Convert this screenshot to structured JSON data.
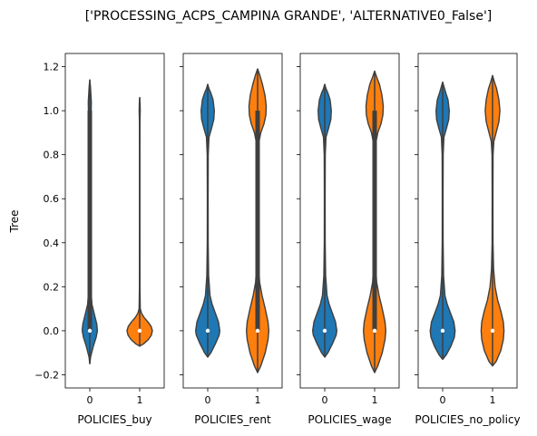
{
  "chart_data": {
    "type": "violin",
    "title": "['PROCESSING_ACPS_CAMPINA GRANDE', 'ALTERNATIVE0_False']",
    "ylabel": "Tree",
    "ylim": [
      -0.26,
      1.26
    ],
    "yticks": [
      -0.2,
      0.0,
      0.2,
      0.4,
      0.6,
      0.8,
      1.0,
      1.2
    ],
    "ytick_labels": [
      "−0.2",
      "0.0",
      "0.2",
      "0.4",
      "0.6",
      "0.8",
      "1.0",
      "1.2"
    ],
    "category_labels": [
      "0",
      "1"
    ],
    "series_colors": {
      "0": "#1f77b4",
      "1": "#ff7f0e"
    },
    "panels": [
      {
        "xlabel": "POLICIES_buy",
        "violins": [
          {
            "category": "0",
            "min_extent": -0.15,
            "max_extent": 1.14,
            "median": 0.0,
            "q1": 0.0,
            "q3": 1.0,
            "profile": [
              [
                -0.15,
                0
              ],
              [
                -0.12,
                0.06
              ],
              [
                -0.07,
                0.28
              ],
              [
                -0.03,
                0.5
              ],
              [
                0.0,
                0.6
              ],
              [
                0.03,
                0.55
              ],
              [
                0.07,
                0.38
              ],
              [
                0.12,
                0.17
              ],
              [
                0.2,
                0.07
              ],
              [
                0.3,
                0.05
              ],
              [
                0.5,
                0.045
              ],
              [
                0.7,
                0.045
              ],
              [
                0.85,
                0.05
              ],
              [
                0.95,
                0.07
              ],
              [
                1.0,
                0.11
              ],
              [
                1.04,
                0.12
              ],
              [
                1.08,
                0.08
              ],
              [
                1.11,
                0.05
              ],
              [
                1.14,
                0
              ]
            ]
          },
          {
            "category": "1",
            "min_extent": -0.07,
            "max_extent": 1.06,
            "median": 0.0,
            "q1": 0.0,
            "q3": 0.0,
            "profile": [
              [
                -0.07,
                0
              ],
              [
                -0.06,
                0.3
              ],
              [
                -0.04,
                0.68
              ],
              [
                -0.02,
                0.92
              ],
              [
                0.0,
                1.0
              ],
              [
                0.02,
                0.9
              ],
              [
                0.04,
                0.65
              ],
              [
                0.06,
                0.35
              ],
              [
                0.08,
                0.14
              ],
              [
                0.1,
                0.045
              ],
              [
                0.2,
                0.02
              ],
              [
                0.5,
                0.015
              ],
              [
                0.8,
                0.015
              ],
              [
                0.95,
                0.02
              ],
              [
                1.0,
                0.04
              ],
              [
                1.03,
                0.03
              ],
              [
                1.06,
                0
              ]
            ]
          }
        ]
      },
      {
        "xlabel": "POLICIES_rent",
        "violins": [
          {
            "category": "0",
            "min_extent": -0.12,
            "max_extent": 1.12,
            "median": 0.0,
            "q1": 0.0,
            "q3": 0.0,
            "profile": [
              [
                -0.12,
                0
              ],
              [
                -0.1,
                0.25
              ],
              [
                -0.06,
                0.6
              ],
              [
                -0.02,
                0.9
              ],
              [
                0.0,
                0.95
              ],
              [
                0.04,
                0.85
              ],
              [
                0.08,
                0.6
              ],
              [
                0.12,
                0.35
              ],
              [
                0.16,
                0.18
              ],
              [
                0.25,
                0.07
              ],
              [
                0.4,
                0.035
              ],
              [
                0.6,
                0.03
              ],
              [
                0.8,
                0.04
              ],
              [
                0.88,
                0.1
              ],
              [
                0.92,
                0.3
              ],
              [
                0.96,
                0.48
              ],
              [
                1.0,
                0.52
              ],
              [
                1.05,
                0.42
              ],
              [
                1.08,
                0.25
              ],
              [
                1.1,
                0.1
              ],
              [
                1.12,
                0
              ]
            ]
          },
          {
            "category": "1",
            "min_extent": -0.19,
            "max_extent": 1.19,
            "median": 0.0,
            "q1": 0.0,
            "q3": 1.0,
            "profile": [
              [
                -0.19,
                0
              ],
              [
                -0.16,
                0.25
              ],
              [
                -0.1,
                0.6
              ],
              [
                -0.04,
                0.82
              ],
              [
                0.0,
                0.88
              ],
              [
                0.04,
                0.82
              ],
              [
                0.1,
                0.6
              ],
              [
                0.16,
                0.35
              ],
              [
                0.22,
                0.16
              ],
              [
                0.3,
                0.07
              ],
              [
                0.45,
                0.04
              ],
              [
                0.6,
                0.035
              ],
              [
                0.75,
                0.04
              ],
              [
                0.85,
                0.08
              ],
              [
                0.9,
                0.25
              ],
              [
                0.94,
                0.5
              ],
              [
                0.98,
                0.65
              ],
              [
                1.02,
                0.68
              ],
              [
                1.07,
                0.58
              ],
              [
                1.12,
                0.38
              ],
              [
                1.16,
                0.18
              ],
              [
                1.19,
                0
              ]
            ]
          }
        ]
      },
      {
        "xlabel": "POLICIES_wage",
        "violins": [
          {
            "category": "0",
            "min_extent": -0.12,
            "max_extent": 1.12,
            "median": 0.0,
            "q1": 0.0,
            "q3": 0.0,
            "profile": [
              [
                -0.12,
                0
              ],
              [
                -0.1,
                0.25
              ],
              [
                -0.06,
                0.6
              ],
              [
                -0.02,
                0.9
              ],
              [
                0.0,
                0.95
              ],
              [
                0.04,
                0.85
              ],
              [
                0.08,
                0.6
              ],
              [
                0.12,
                0.35
              ],
              [
                0.16,
                0.18
              ],
              [
                0.25,
                0.07
              ],
              [
                0.4,
                0.035
              ],
              [
                0.6,
                0.03
              ],
              [
                0.8,
                0.04
              ],
              [
                0.88,
                0.1
              ],
              [
                0.92,
                0.3
              ],
              [
                0.96,
                0.48
              ],
              [
                1.0,
                0.52
              ],
              [
                1.05,
                0.42
              ],
              [
                1.08,
                0.25
              ],
              [
                1.1,
                0.1
              ],
              [
                1.12,
                0
              ]
            ]
          },
          {
            "category": "1",
            "min_extent": -0.19,
            "max_extent": 1.18,
            "median": 0.0,
            "q1": 0.0,
            "q3": 1.0,
            "profile": [
              [
                -0.19,
                0
              ],
              [
                -0.16,
                0.25
              ],
              [
                -0.1,
                0.6
              ],
              [
                -0.04,
                0.82
              ],
              [
                0.0,
                0.88
              ],
              [
                0.04,
                0.82
              ],
              [
                0.1,
                0.6
              ],
              [
                0.16,
                0.35
              ],
              [
                0.22,
                0.16
              ],
              [
                0.3,
                0.07
              ],
              [
                0.45,
                0.04
              ],
              [
                0.6,
                0.035
              ],
              [
                0.75,
                0.04
              ],
              [
                0.85,
                0.08
              ],
              [
                0.9,
                0.25
              ],
              [
                0.94,
                0.5
              ],
              [
                0.98,
                0.65
              ],
              [
                1.02,
                0.68
              ],
              [
                1.07,
                0.58
              ],
              [
                1.12,
                0.38
              ],
              [
                1.15,
                0.18
              ],
              [
                1.18,
                0
              ]
            ]
          }
        ]
      },
      {
        "xlabel": "POLICIES_no_policy",
        "violins": [
          {
            "category": "0",
            "min_extent": -0.13,
            "max_extent": 1.13,
            "median": 0.0,
            "q1": 0.0,
            "q3": 0.0,
            "profile": [
              [
                -0.13,
                0
              ],
              [
                -0.11,
                0.28
              ],
              [
                -0.07,
                0.65
              ],
              [
                -0.03,
                0.92
              ],
              [
                0.0,
                0.98
              ],
              [
                0.04,
                0.88
              ],
              [
                0.08,
                0.62
              ],
              [
                0.12,
                0.36
              ],
              [
                0.16,
                0.18
              ],
              [
                0.25,
                0.07
              ],
              [
                0.4,
                0.035
              ],
              [
                0.6,
                0.03
              ],
              [
                0.8,
                0.04
              ],
              [
                0.88,
                0.1
              ],
              [
                0.92,
                0.3
              ],
              [
                0.96,
                0.48
              ],
              [
                1.0,
                0.52
              ],
              [
                1.05,
                0.42
              ],
              [
                1.08,
                0.25
              ],
              [
                1.11,
                0.1
              ],
              [
                1.13,
                0
              ]
            ]
          },
          {
            "category": "1",
            "min_extent": -0.16,
            "max_extent": 1.16,
            "median": 0.0,
            "q1": 0.0,
            "q3": 0.0,
            "profile": [
              [
                -0.16,
                0
              ],
              [
                -0.14,
                0.28
              ],
              [
                -0.09,
                0.65
              ],
              [
                -0.04,
                0.85
              ],
              [
                0.0,
                0.9
              ],
              [
                0.04,
                0.85
              ],
              [
                0.09,
                0.65
              ],
              [
                0.14,
                0.4
              ],
              [
                0.2,
                0.2
              ],
              [
                0.28,
                0.08
              ],
              [
                0.4,
                0.035
              ],
              [
                0.6,
                0.03
              ],
              [
                0.8,
                0.04
              ],
              [
                0.86,
                0.1
              ],
              [
                0.9,
                0.28
              ],
              [
                0.95,
                0.5
              ],
              [
                1.0,
                0.58
              ],
              [
                1.05,
                0.5
              ],
              [
                1.1,
                0.32
              ],
              [
                1.13,
                0.15
              ],
              [
                1.16,
                0
              ]
            ]
          }
        ]
      }
    ]
  }
}
